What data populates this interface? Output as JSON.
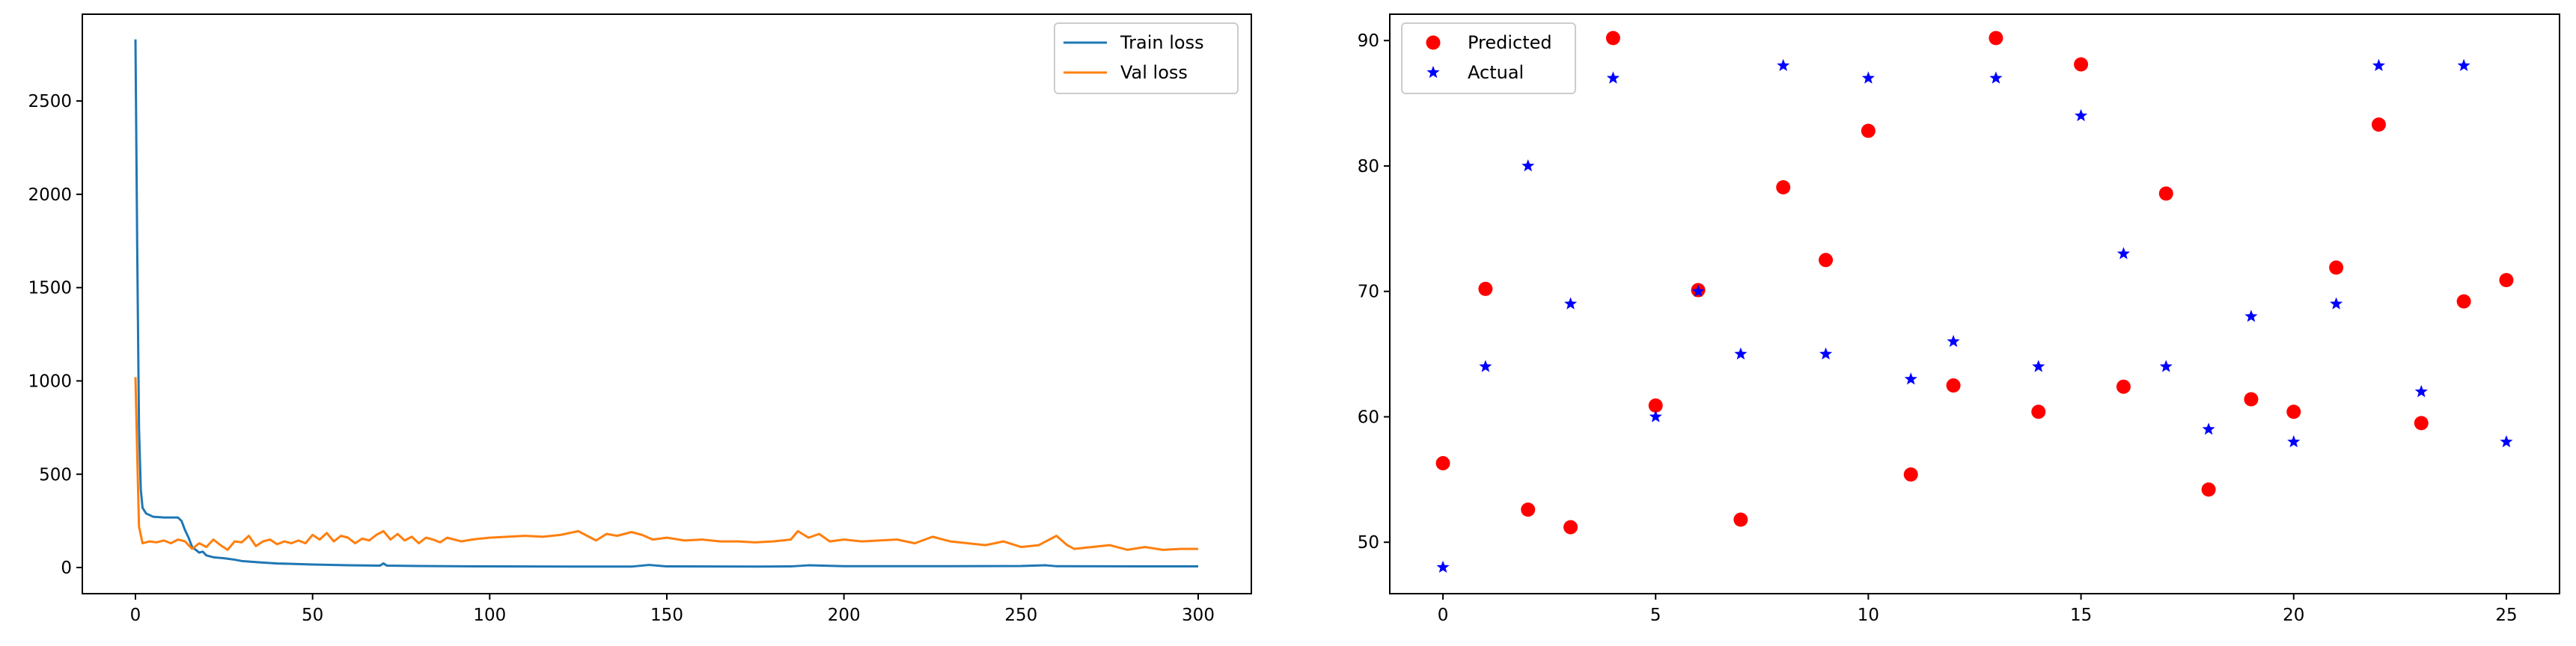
{
  "chart_data": [
    {
      "type": "line",
      "title": "",
      "xlabel": "",
      "ylabel": "",
      "xlim": [
        -15,
        315
      ],
      "ylim": [
        -140,
        2965
      ],
      "xticks": [
        0,
        50,
        100,
        150,
        200,
        250,
        300
      ],
      "yticks": [
        0,
        500,
        1000,
        1500,
        2000,
        2500
      ],
      "grid": false,
      "legend_placement": "upper right",
      "series": [
        {
          "name": "Train loss",
          "color": "#1f77b4",
          "points": [
            [
              0,
              2830
            ],
            [
              0.5,
              1700
            ],
            [
              1,
              750
            ],
            [
              1.5,
              420
            ],
            [
              2,
              320
            ],
            [
              3,
              290
            ],
            [
              5,
              272
            ],
            [
              8,
              268
            ],
            [
              12,
              268
            ],
            [
              13,
              250
            ],
            [
              14,
              200
            ],
            [
              15,
              160
            ],
            [
              16,
              110
            ],
            [
              17,
              95
            ],
            [
              18,
              80
            ],
            [
              19,
              85
            ],
            [
              20,
              65
            ],
            [
              22,
              55
            ],
            [
              25,
              50
            ],
            [
              28,
              42
            ],
            [
              30,
              35
            ],
            [
              35,
              28
            ],
            [
              40,
              22
            ],
            [
              50,
              16
            ],
            [
              60,
              12
            ],
            [
              69,
              10
            ],
            [
              70,
              22
            ],
            [
              71,
              10
            ],
            [
              80,
              8
            ],
            [
              100,
              6
            ],
            [
              125,
              5
            ],
            [
              140,
              5
            ],
            [
              145,
              14
            ],
            [
              150,
              6
            ],
            [
              175,
              5
            ],
            [
              185,
              6
            ],
            [
              190,
              12
            ],
            [
              200,
              7
            ],
            [
              225,
              7
            ],
            [
              250,
              8
            ],
            [
              257,
              12
            ],
            [
              260,
              7
            ],
            [
              300,
              6
            ]
          ]
        },
        {
          "name": "Val loss",
          "color": "#ff7f0e",
          "points": [
            [
              0,
              1020
            ],
            [
              0.5,
              600
            ],
            [
              1,
              220
            ],
            [
              2,
              130
            ],
            [
              4,
              140
            ],
            [
              6,
              135
            ],
            [
              8,
              145
            ],
            [
              10,
              130
            ],
            [
              12,
              150
            ],
            [
              14,
              140
            ],
            [
              16,
              100
            ],
            [
              18,
              130
            ],
            [
              20,
              110
            ],
            [
              22,
              150
            ],
            [
              24,
              120
            ],
            [
              26,
              95
            ],
            [
              28,
              140
            ],
            [
              30,
              135
            ],
            [
              32,
              170
            ],
            [
              34,
              115
            ],
            [
              36,
              140
            ],
            [
              38,
              150
            ],
            [
              40,
              125
            ],
            [
              42,
              140
            ],
            [
              44,
              130
            ],
            [
              46,
              145
            ],
            [
              48,
              130
            ],
            [
              50,
              175
            ],
            [
              52,
              150
            ],
            [
              54,
              185
            ],
            [
              56,
              140
            ],
            [
              58,
              170
            ],
            [
              60,
              160
            ],
            [
              62,
              130
            ],
            [
              64,
              155
            ],
            [
              66,
              145
            ],
            [
              68,
              175
            ],
            [
              70,
              195
            ],
            [
              72,
              150
            ],
            [
              74,
              180
            ],
            [
              76,
              145
            ],
            [
              78,
              165
            ],
            [
              80,
              130
            ],
            [
              82,
              160
            ],
            [
              84,
              150
            ],
            [
              86,
              135
            ],
            [
              88,
              160
            ],
            [
              90,
              150
            ],
            [
              92,
              140
            ],
            [
              95,
              150
            ],
            [
              100,
              160
            ],
            [
              105,
              165
            ],
            [
              110,
              170
            ],
            [
              115,
              165
            ],
            [
              120,
              175
            ],
            [
              125,
              195
            ],
            [
              128,
              165
            ],
            [
              130,
              145
            ],
            [
              133,
              180
            ],
            [
              136,
              170
            ],
            [
              140,
              190
            ],
            [
              143,
              175
            ],
            [
              146,
              150
            ],
            [
              150,
              160
            ],
            [
              155,
              145
            ],
            [
              160,
              150
            ],
            [
              165,
              140
            ],
            [
              170,
              140
            ],
            [
              175,
              135
            ],
            [
              180,
              140
            ],
            [
              185,
              150
            ],
            [
              187,
              195
            ],
            [
              190,
              160
            ],
            [
              193,
              180
            ],
            [
              196,
              140
            ],
            [
              200,
              150
            ],
            [
              205,
              140
            ],
            [
              210,
              145
            ],
            [
              215,
              150
            ],
            [
              220,
              130
            ],
            [
              225,
              165
            ],
            [
              230,
              140
            ],
            [
              235,
              130
            ],
            [
              240,
              120
            ],
            [
              245,
              140
            ],
            [
              250,
              110
            ],
            [
              255,
              120
            ],
            [
              260,
              170
            ],
            [
              263,
              120
            ],
            [
              265,
              100
            ],
            [
              270,
              110
            ],
            [
              275,
              120
            ],
            [
              280,
              95
            ],
            [
              285,
              110
            ],
            [
              290,
              95
            ],
            [
              295,
              100
            ],
            [
              300,
              100
            ]
          ]
        }
      ]
    },
    {
      "type": "scatter",
      "title": "",
      "xlabel": "",
      "ylabel": "",
      "xlim": [
        -1.25,
        26.25
      ],
      "ylim": [
        45.9,
        92.1
      ],
      "xticks": [
        0,
        5,
        10,
        15,
        20,
        25
      ],
      "yticks": [
        50,
        60,
        70,
        80,
        90
      ],
      "grid": false,
      "legend_placement": "upper left",
      "series": [
        {
          "name": "Predicted",
          "color": "#ff0000",
          "marker": "circle",
          "x": [
            0,
            1,
            2,
            3,
            4,
            5,
            6,
            7,
            8,
            9,
            10,
            11,
            12,
            13,
            14,
            15,
            16,
            17,
            18,
            19,
            20,
            21,
            22,
            23,
            24,
            25
          ],
          "y": [
            56.3,
            70.2,
            52.6,
            51.2,
            90.2,
            60.9,
            70.1,
            51.8,
            78.3,
            72.5,
            82.8,
            55.4,
            62.5,
            90.2,
            60.4,
            88.1,
            62.4,
            77.8,
            54.2,
            61.4,
            60.4,
            71.9,
            83.3,
            59.5,
            69.2,
            70.9
          ]
        },
        {
          "name": "Actual",
          "color": "#0000ff",
          "marker": "star",
          "x": [
            0,
            1,
            2,
            3,
            4,
            5,
            6,
            7,
            8,
            9,
            10,
            11,
            12,
            13,
            14,
            15,
            16,
            17,
            18,
            19,
            20,
            21,
            22,
            23,
            24,
            25
          ],
          "y": [
            48,
            64,
            80,
            69,
            87,
            60,
            70,
            65,
            88,
            65,
            87,
            63,
            66,
            87,
            64,
            84,
            73,
            64,
            59,
            68,
            58,
            69,
            88,
            62,
            88,
            58
          ]
        }
      ]
    }
  ]
}
